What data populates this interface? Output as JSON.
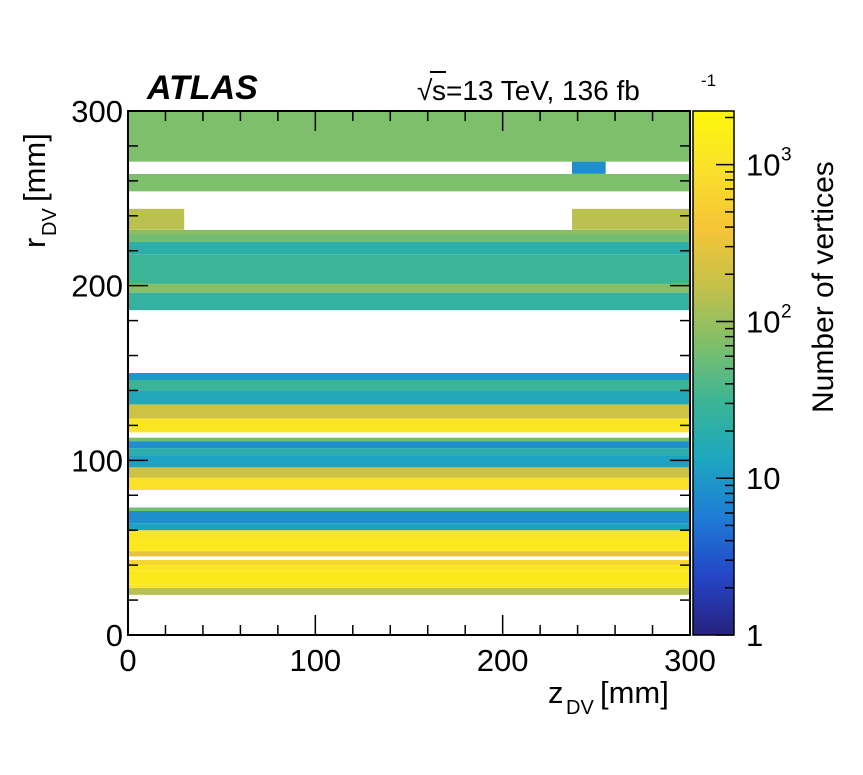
{
  "chart_data": {
    "type": "heatmap",
    "experiment_label": "ATLAS",
    "energy_label": "s=13 TeV, 136 fb",
    "sqrt_symbol": "√",
    "lumi_exponent": "-1",
    "xlabel_main": "z",
    "xlabel_sub": "DV",
    "xlabel_unit": " [mm]",
    "ylabel_main": "r",
    "ylabel_sub": "DV",
    "ylabel_unit": " [mm]",
    "xlim": [
      0,
      300
    ],
    "ylim": [
      0,
      300
    ],
    "x_ticks": [
      "0",
      "100",
      "200",
      "300"
    ],
    "y_ticks": [
      "0",
      "100",
      "200",
      "300"
    ],
    "colorbar": {
      "label": "Number of vertices",
      "scale": "log",
      "range": [
        1,
        2200
      ],
      "ticks": [
        {
          "value": 1,
          "base": "1",
          "exp": ""
        },
        {
          "value": 10,
          "base": "10",
          "exp": ""
        },
        {
          "value": 100,
          "base": "10",
          "exp": "2"
        },
        {
          "value": 1000,
          "base": "10",
          "exp": "3"
        }
      ]
    },
    "bands": [
      {
        "r_min": 0.0,
        "r_max": 23.0,
        "counts": 0
      },
      {
        "r_min": 23.0,
        "r_max": 27.0,
        "counts": 150
      },
      {
        "r_min": 27.0,
        "r_max": 29.0,
        "counts": 1200
      },
      {
        "r_min": 29.0,
        "r_max": 37.0,
        "counts": 1300
      },
      {
        "r_min": 37.0,
        "r_max": 40.0,
        "counts": 1100
      },
      {
        "r_min": 40.0,
        "r_max": 43.0,
        "counts": 700
      },
      {
        "r_min": 43.0,
        "r_max": 45.0,
        "counts": 0
      },
      {
        "r_min": 45.0,
        "r_max": 48.0,
        "counts": 300
      },
      {
        "r_min": 48.0,
        "r_max": 55.0,
        "counts": 1300
      },
      {
        "r_min": 55.0,
        "r_max": 60.0,
        "counts": 1100
      },
      {
        "r_min": 60.0,
        "r_max": 64.0,
        "counts": 12
      },
      {
        "r_min": 64.0,
        "r_max": 71.0,
        "counts": 8
      },
      {
        "r_min": 71.0,
        "r_max": 73.0,
        "counts": 60
      },
      {
        "r_min": 73.0,
        "r_max": 83.0,
        "counts": 0
      },
      {
        "r_min": 83.0,
        "r_max": 90.0,
        "counts": 1000
      },
      {
        "r_min": 90.0,
        "r_max": 96.0,
        "counts": 200
      },
      {
        "r_min": 96.0,
        "r_max": 103.0,
        "counts": 12
      },
      {
        "r_min": 103.0,
        "r_max": 107.0,
        "counts": 20
      },
      {
        "r_min": 107.0,
        "r_max": 111.0,
        "counts": 8
      },
      {
        "r_min": 111.0,
        "r_max": 113.0,
        "counts": 60
      },
      {
        "r_min": 113.0,
        "r_max": 116.0,
        "counts": 0
      },
      {
        "r_min": 116.0,
        "r_max": 124.0,
        "counts": 1100
      },
      {
        "r_min": 124.0,
        "r_max": 132.0,
        "counts": 200
      },
      {
        "r_min": 132.0,
        "r_max": 140.0,
        "counts": 15
      },
      {
        "r_min": 140.0,
        "r_max": 146.0,
        "counts": 30
      },
      {
        "r_min": 146.0,
        "r_max": 150.0,
        "counts": 10
      },
      {
        "r_min": 150.0,
        "r_max": 186.0,
        "counts": 0
      },
      {
        "r_min": 186.0,
        "r_max": 196.0,
        "counts": 25
      },
      {
        "r_min": 196.0,
        "r_max": 201.0,
        "counts": 80
      },
      {
        "r_min": 201.0,
        "r_max": 218.0,
        "counts": 30
      },
      {
        "r_min": 218.0,
        "r_max": 225.0,
        "counts": 20
      },
      {
        "r_min": 225.0,
        "r_max": 229.0,
        "counts": 60
      },
      {
        "r_min": 229.0,
        "r_max": 232.0,
        "counts": 80
      },
      {
        "r_min": 232.0,
        "r_max": 244.0,
        "counts": 0
      },
      {
        "r_min": 244.0,
        "r_max": 254.0,
        "counts": 0
      },
      {
        "r_min": 254.0,
        "r_max": 264.0,
        "counts": 70
      },
      {
        "r_min": 264.0,
        "r_max": 271.0,
        "counts": 0
      },
      {
        "r_min": 271.0,
        "r_max": 300.0,
        "counts": 70
      }
    ],
    "gap_overlays": [
      {
        "z_min": 30.0,
        "z_max": 237.0,
        "r_min": 232.0,
        "r_max": 244.0,
        "note": "upper ring gap"
      },
      {
        "z_min": 0.0,
        "z_max": 30.0,
        "r_min": 232.0,
        "r_max": 244.0,
        "counts": 150
      },
      {
        "z_min": 237.0,
        "z_max": 300.0,
        "r_min": 232.0,
        "r_max": 244.0,
        "counts": 150
      },
      {
        "z_min": 237.0,
        "z_max": 255.0,
        "r_min": 264.0,
        "r_max": 271.0,
        "counts": 8
      }
    ]
  }
}
